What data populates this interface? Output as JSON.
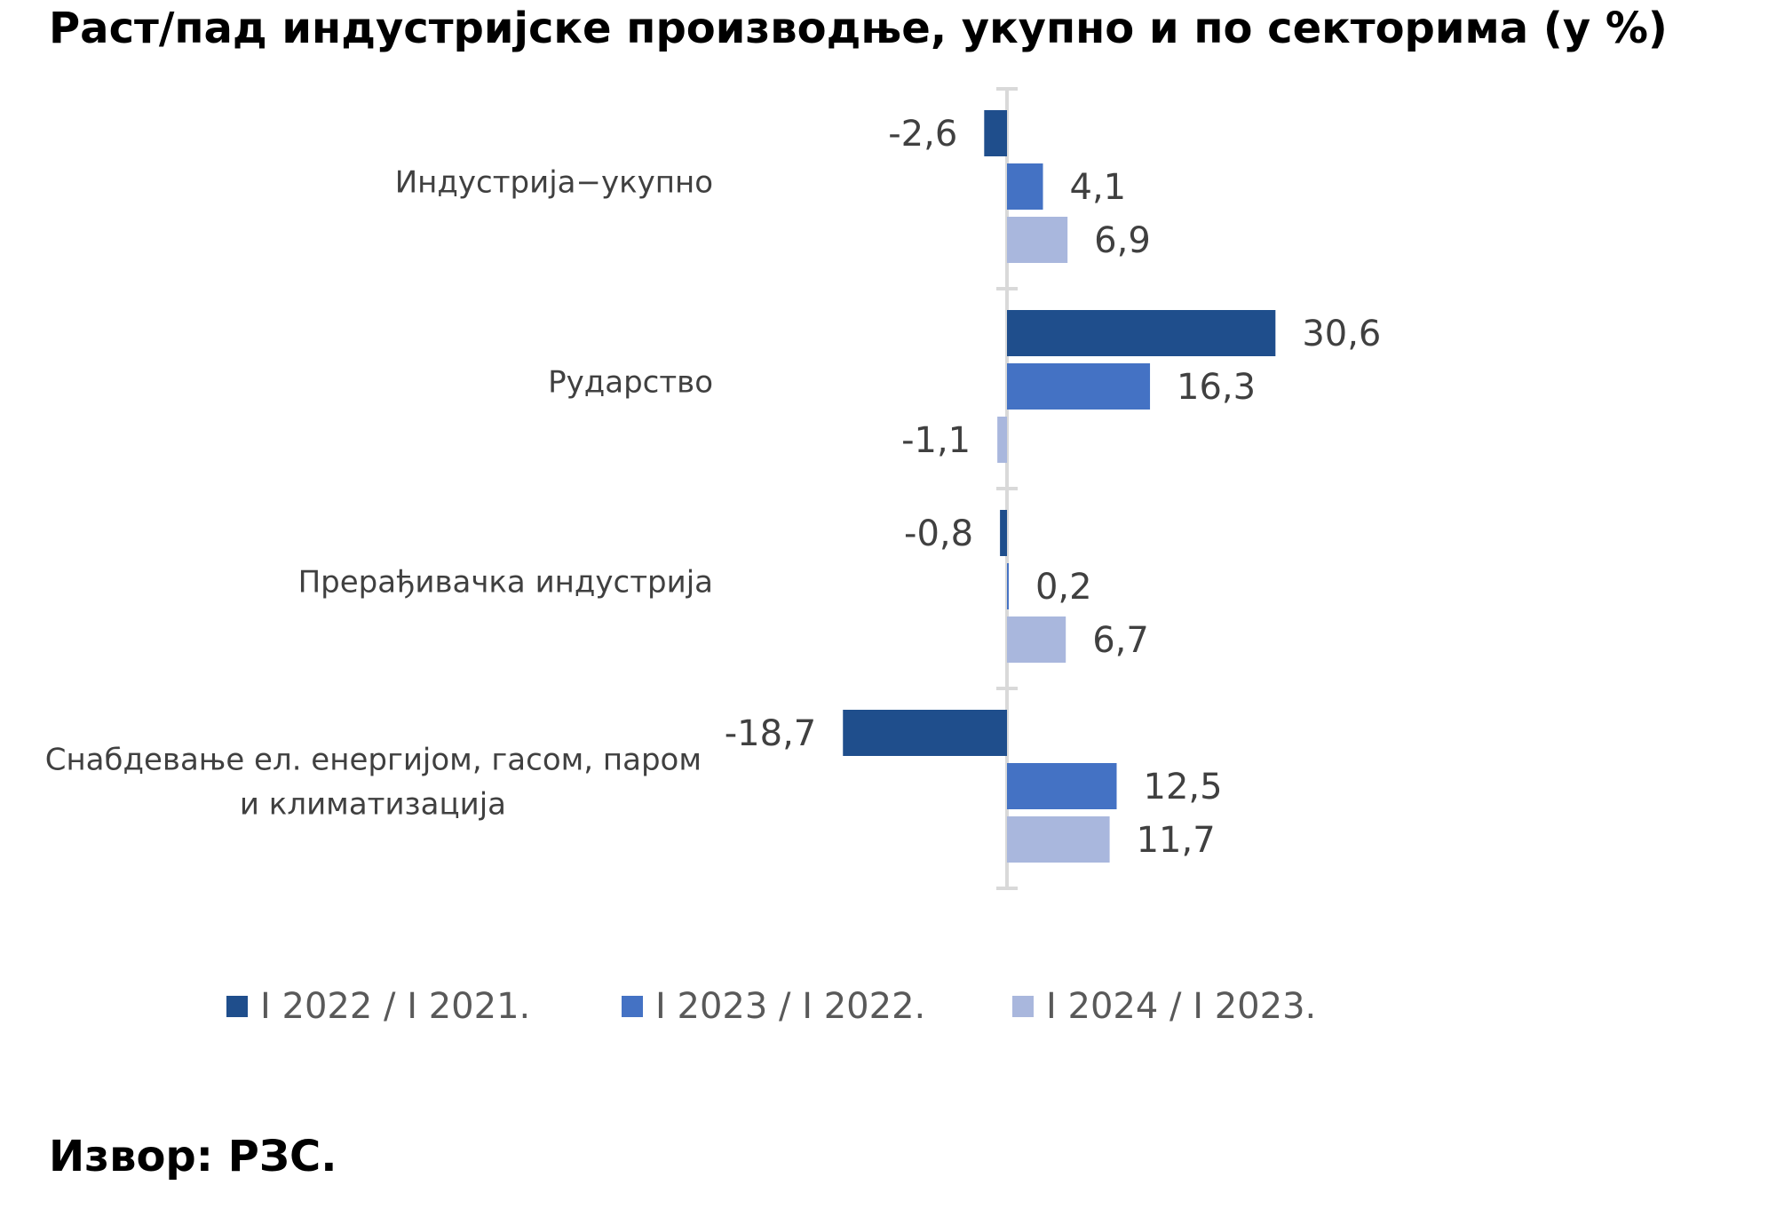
{
  "title": "Раст/пад индустријске производње, укупно и по секторима (у %)",
  "source": "Извор: РЗС.",
  "colors": {
    "series_1": "#1f4e8c",
    "series_2": "#4472c4",
    "series_3": "#a9b7dd",
    "axis": "#d9d9d9",
    "label": "#404040"
  },
  "legend_position": "bottom",
  "chart_data": {
    "type": "bar",
    "orientation": "horizontal",
    "categories": [
      "Индустрија−укупно",
      "Рударство",
      "Прерађивачка индустрија",
      "Снабдевање ел. енергијом, гасом, паром и климатизација"
    ],
    "category_lines": [
      [
        "Индустрија−укупно"
      ],
      [
        "Рударство"
      ],
      [
        "Прерађивачка индустрија"
      ],
      [
        "Снабдевање ел. енергијом, гасом, паром",
        "и климатизација"
      ]
    ],
    "series": [
      {
        "name": "I 2022 / I 2021.",
        "values": [
          -2.6,
          30.6,
          -0.8,
          -18.7
        ],
        "labels": [
          "-2,6",
          "30,6",
          "-0,8",
          "-18,7"
        ]
      },
      {
        "name": "I 2023 / I 2022.",
        "values": [
          4.1,
          16.3,
          0.2,
          12.5
        ],
        "labels": [
          "4,1",
          "16,3",
          "0,2",
          "12,5"
        ]
      },
      {
        "name": "I 2024 / I 2023.",
        "values": [
          6.9,
          -1.1,
          6.7,
          11.7
        ],
        "labels": [
          "6,9",
          "-1,1",
          "6,7",
          "11,7"
        ]
      }
    ],
    "grid": false,
    "legend": "bottom"
  }
}
